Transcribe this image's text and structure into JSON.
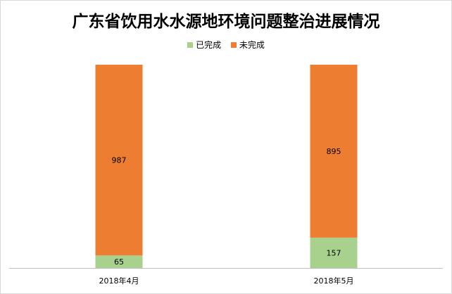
{
  "chart_data": {
    "type": "bar",
    "stacked": true,
    "title": "广东省饮用水水源地环境问题整治进展情况",
    "categories": [
      "2018年4月",
      "2018年5月"
    ],
    "series": [
      {
        "name": "已完成",
        "values": [
          65,
          157
        ],
        "color": "#a9d18e"
      },
      {
        "name": "未完成",
        "values": [
          987,
          895
        ],
        "color": "#ed7d31"
      }
    ],
    "ylim": [
      0,
      1052
    ],
    "legend_position": "top",
    "grid": false,
    "data_labels": true
  }
}
